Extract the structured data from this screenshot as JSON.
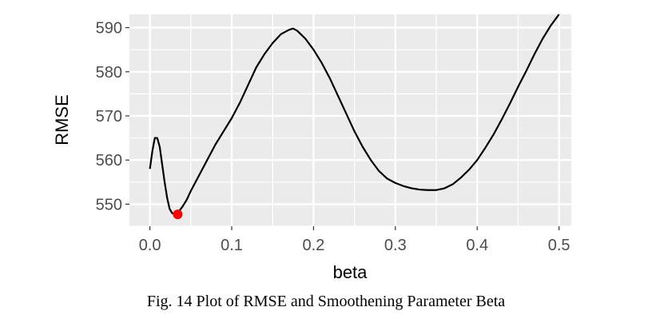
{
  "caption": "Fig. 14 Plot of RMSE and Smoothening Parameter Beta",
  "colors": {
    "panel_background": "#ebebeb",
    "grid_major": "#ffffff",
    "line": "#000000",
    "minimum_point": "#ff0000",
    "tick_text": "#4d4d4d"
  },
  "chart_data": {
    "type": "line",
    "xlabel": "beta",
    "ylabel": "RMSE",
    "xlim": [
      -0.025,
      0.515
    ],
    "ylim": [
      545,
      593
    ],
    "x_ticks": [
      0.0,
      0.1,
      0.2,
      0.3,
      0.4,
      0.5
    ],
    "x_tick_labels": [
      "0.0",
      "0.1",
      "0.2",
      "0.3",
      "0.4",
      "0.5"
    ],
    "y_ticks": [
      550,
      560,
      570,
      580,
      590
    ],
    "y_tick_labels": [
      "550",
      "560",
      "570",
      "580",
      "590"
    ],
    "grid": true,
    "legend": "none",
    "series": [
      {
        "x": [
          0.0,
          0.003,
          0.006,
          0.009,
          0.012,
          0.015,
          0.018,
          0.021,
          0.024,
          0.027,
          0.03,
          0.033,
          0.036,
          0.04,
          0.045,
          0.05,
          0.06,
          0.07,
          0.08,
          0.09,
          0.1,
          0.11,
          0.12,
          0.13,
          0.14,
          0.15,
          0.16,
          0.17,
          0.175,
          0.18,
          0.19,
          0.2,
          0.21,
          0.22,
          0.23,
          0.24,
          0.25,
          0.26,
          0.27,
          0.28,
          0.29,
          0.3,
          0.31,
          0.32,
          0.33,
          0.34,
          0.35,
          0.36,
          0.37,
          0.38,
          0.39,
          0.4,
          0.41,
          0.42,
          0.43,
          0.44,
          0.45,
          0.46,
          0.47,
          0.48,
          0.49,
          0.5
        ],
        "y": [
          558,
          562,
          565,
          565,
          563,
          559,
          555,
          551.5,
          549,
          548,
          547.8,
          547.7,
          548.5,
          549.5,
          551,
          553,
          556.5,
          560,
          563.5,
          566.5,
          569.5,
          573,
          577,
          581,
          584,
          586.5,
          588.5,
          589.5,
          589.8,
          589.3,
          587.5,
          585,
          582,
          578.5,
          574.5,
          570.5,
          566.5,
          563,
          560,
          557.5,
          555.8,
          554.8,
          554.1,
          553.6,
          553.3,
          553.2,
          553.2,
          553.6,
          554.5,
          556,
          557.8,
          560,
          562.8,
          565.8,
          569.2,
          572.8,
          576.6,
          580.2,
          584,
          587.5,
          590.5,
          593
        ]
      }
    ],
    "minimum_point": {
      "x": 0.034,
      "y": 547.7
    }
  }
}
